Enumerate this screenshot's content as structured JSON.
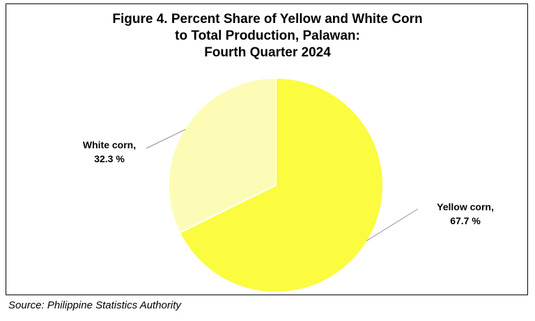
{
  "title_lines": [
    "Figure 4. Percent Share of Yellow and White Corn",
    "to Total Production, Palawan:",
    "Fourth Quarter 2024"
  ],
  "source": "Source: Philippine Statistics Authority",
  "chart_data": {
    "type": "pie",
    "title": "Figure 4. Percent Share of Yellow and White Corn to Total Production, Palawan: Fourth Quarter 2024",
    "slices": [
      {
        "name": "Yellow corn",
        "value": 67.7,
        "label_lines": [
          "Yellow corn,",
          "67.7 %"
        ],
        "color": "#FBFB3F"
      },
      {
        "name": "White corn",
        "value": 32.3,
        "label_lines": [
          "White corn,",
          "32.3 %"
        ],
        "color": "#FDFCB6"
      }
    ],
    "start": "12 o'clock",
    "direction": "clockwise",
    "legend": "none",
    "data_labels": "outside with leader lines"
  }
}
